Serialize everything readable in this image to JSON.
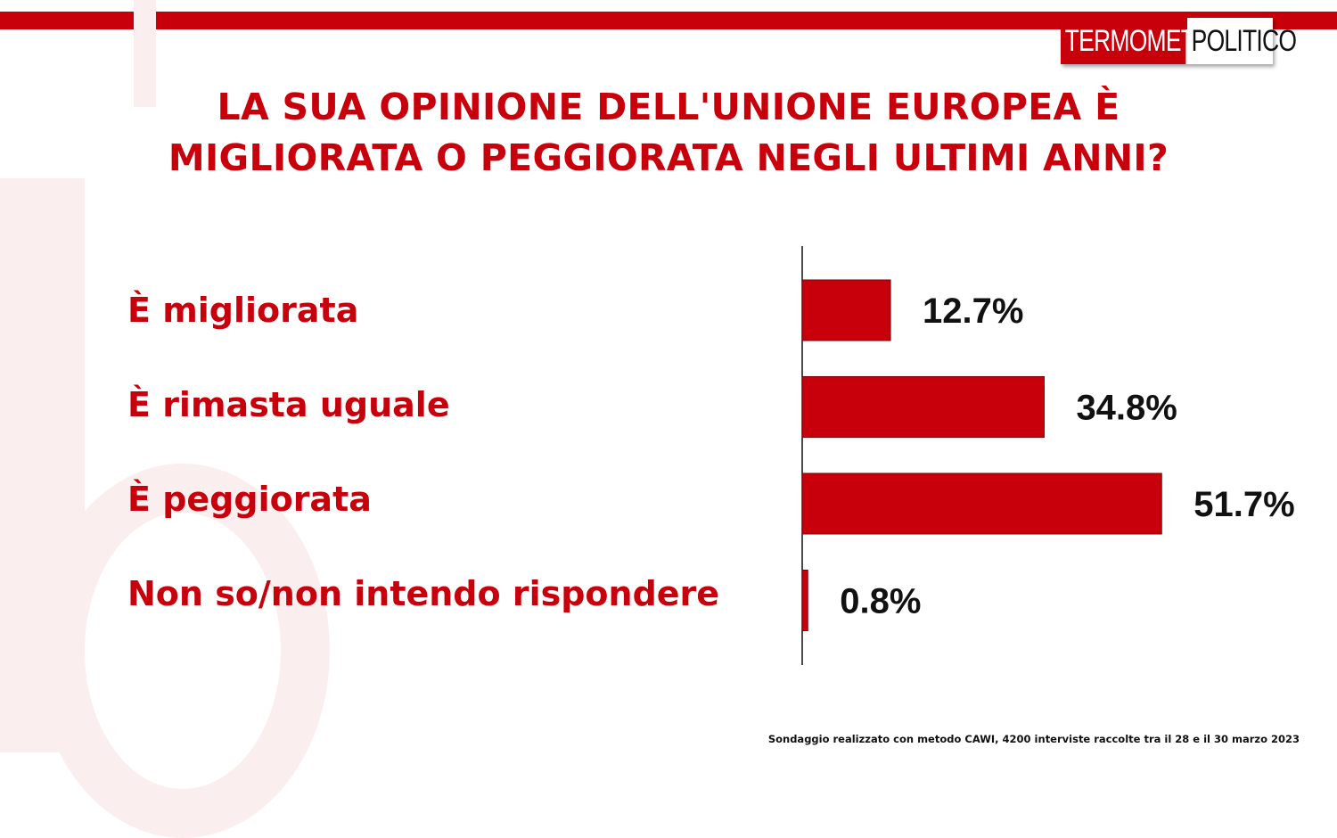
{
  "brand": {
    "left": "TERMOMETRO",
    "right": "POLITICO"
  },
  "title_line1": "LA SUA OPINIONE DELL'UNIONE EUROPEA È",
  "title_line2": "MIGLIORATA O PEGGIORATA NEGLI ULTIMI ANNI?",
  "footnote": "Sondaggio realizzato con metodo CAWI, 4200 interviste raccolte tra il 28 e il 30 marzo 2023",
  "colors": {
    "accent": "#c8000b",
    "watermark": "#fbeeee"
  },
  "chart_data": {
    "type": "bar",
    "orientation": "horizontal",
    "categories": [
      "È migliorata",
      "È rimasta uguale",
      "È peggiorata",
      "Non so/non intendo rispondere"
    ],
    "values": [
      12.7,
      34.8,
      51.7,
      0.8
    ],
    "value_labels": [
      "12.7%",
      "34.8%",
      "51.7%",
      "0.8%"
    ],
    "unit": "%",
    "xlim": [
      0,
      100
    ],
    "bar_color": "#c8000b",
    "grid": false
  }
}
